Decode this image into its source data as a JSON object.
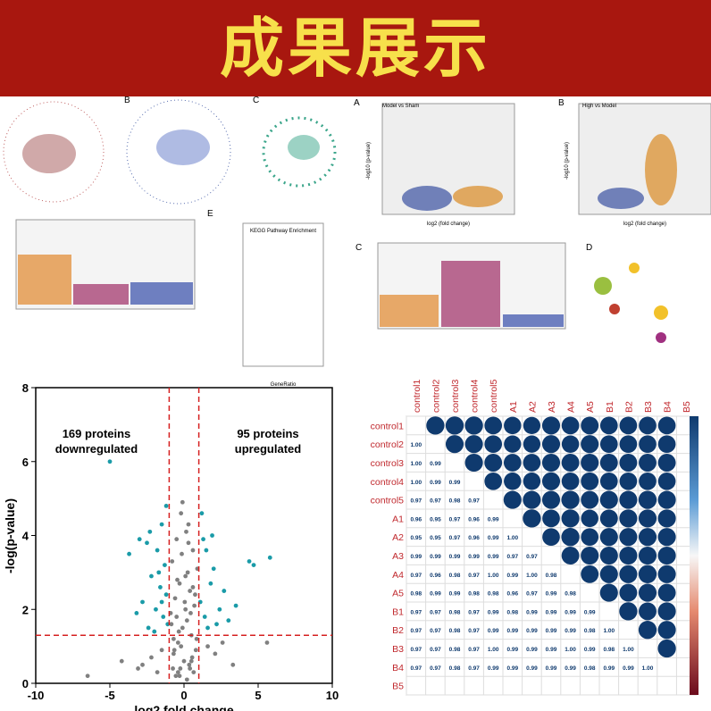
{
  "header": {
    "title": "成果展示"
  },
  "panels": {
    "labels": [
      "B",
      "C",
      "A",
      "B",
      "E",
      "C",
      "D"
    ],
    "texts": [
      "Model vs Sham",
      "High vs Model",
      "KEGG Pathway Enrichment",
      "GeneRatio",
      "log2 (fold change)",
      "log2 (fold change)",
      "-log10 (p-value)",
      "-log10 (p-value)"
    ]
  },
  "chart_data": [
    {
      "type": "scatter",
      "x_label": "log2 fold change",
      "y_label": "-log(p-value)",
      "annotations": [
        "169 proteins downregulated",
        "95 proteins upregulated"
      ],
      "xlim": [
        -10,
        10
      ],
      "xticks": [
        -10,
        -5,
        0,
        5,
        10
      ],
      "ylim": [
        0,
        8
      ],
      "yticks": [
        0,
        2,
        4,
        6,
        8
      ],
      "thresholds_x": [
        -1,
        1
      ],
      "threshold_y": 1.3,
      "threshold_color": "#d62020",
      "series": [
        {
          "color": "#808080",
          "x": [
            -0.2,
            0.3,
            -0.5,
            0.6,
            -0.8,
            0.9,
            0.1,
            -0.3,
            0.4,
            -0.6,
            0.7,
            -0.9,
            0.2,
            -0.1,
            0.5,
            -0.4,
            0.8,
            -0.7,
            0.0,
            0.35,
            -0.25,
            0.65,
            -0.55,
            0.15,
            -0.85,
            0.75,
            -0.45,
            0.45,
            -0.15,
            0.25,
            -0.65,
            0.55,
            -0.35,
            0.05,
            -0.75,
            0.85,
            -1.5,
            1.6,
            -2.2,
            2.1,
            -3.1,
            -4.2,
            3.3,
            2.6,
            -1.8,
            5.6,
            -0.3,
            0.2,
            -0.5,
            0.4,
            -0.1,
            0.6,
            -0.7,
            0.3,
            0.1,
            -0.2,
            0.5,
            -0.4,
            -6.5,
            -2.8
          ],
          "values": [
            4.6,
            4.3,
            3.9,
            3.6,
            3.3,
            3.1,
            2.9,
            2.7,
            2.5,
            2.3,
            2.1,
            1.9,
            1.7,
            1.5,
            1.3,
            1.1,
            0.9,
            0.8,
            0.6,
            0.5,
            0.4,
            0.3,
            0.2,
            4.1,
            1.6,
            2.4,
            2.8,
            1.9,
            3.5,
            3.0,
            0.9,
            0.7,
            1.4,
            2.2,
            0.4,
            1.2,
            0.9,
            1.0,
            0.7,
            0.8,
            0.4,
            0.6,
            0.5,
            1.1,
            0.3,
            1.1,
            0.2,
            0.1,
            1.8,
            0.4,
            4.9,
            2.6,
            1.2,
            3.8,
            2.0,
            1.0,
            0.6,
            0.3,
            0.2,
            0.5
          ]
        },
        {
          "color": "#1a9ba8",
          "x": [
            -5,
            -3.7,
            -2.3,
            -2.5,
            -1.8,
            -1.5,
            -1.3,
            -2.2,
            -1.6,
            -1.2,
            -2.8,
            -1.9,
            -1.4,
            -3.2,
            -1.1,
            -2.4,
            -1.7,
            -1.2,
            -2,
            -3,
            -1.5,
            1.2,
            1.5,
            2.0,
            4.4,
            4.7,
            5.8,
            1.8,
            1.1,
            2.4,
            1.4,
            3.0,
            1.6,
            2.7,
            1.3,
            2.2,
            3.5,
            1.9
          ],
          "values": [
            6,
            3.5,
            4.1,
            3.8,
            3.6,
            4.3,
            3.2,
            2.9,
            2.6,
            2.4,
            2.2,
            2.0,
            1.8,
            1.9,
            1.6,
            1.5,
            3.0,
            4.8,
            1.4,
            3.9,
            2.2,
            4.6,
            3.6,
            3.1,
            3.3,
            3.2,
            3.4,
            2.7,
            2.2,
            2.0,
            1.8,
            1.7,
            1.5,
            2.5,
            3.9,
            1.6,
            2.1,
            4.0
          ]
        }
      ]
    },
    {
      "type": "correlation",
      "labels": [
        "control1",
        "control2",
        "control3",
        "control4",
        "control5",
        "A1",
        "A2",
        "A3",
        "A4",
        "A5",
        "B1",
        "B2",
        "B3",
        "B4",
        "B5"
      ],
      "label_color": "#c0282d",
      "circle_color": "#0f3a6e",
      "values": [
        [],
        [
          1
        ],
        [
          1,
          0.99
        ],
        [
          1,
          0.99,
          0.99
        ],
        [
          0.97,
          0.97,
          0.98,
          0.97
        ],
        [
          0.96,
          0.95,
          0.97,
          0.96,
          0.99
        ],
        [
          0.95,
          0.95,
          0.97,
          0.96,
          0.99,
          1
        ],
        [
          0.99,
          0.99,
          0.99,
          0.99,
          0.99,
          0.97,
          0.97
        ],
        [
          0.97,
          0.96,
          0.98,
          0.97,
          1,
          0.99,
          1,
          0.98
        ],
        [
          0.98,
          0.99,
          0.99,
          0.98,
          0.98,
          0.96,
          0.97,
          0.99,
          0.98
        ],
        [
          0.97,
          0.97,
          0.98,
          0.97,
          0.99,
          0.98,
          0.99,
          0.99,
          0.99,
          0.99
        ],
        [
          0.97,
          0.97,
          0.98,
          0.97,
          0.99,
          0.99,
          0.99,
          0.99,
          0.99,
          0.98,
          1
        ],
        [
          0.97,
          0.97,
          0.98,
          0.97,
          1,
          0.99,
          0.99,
          0.99,
          1,
          0.99,
          0.98,
          1
        ],
        [
          0.97,
          0.97,
          0.98,
          0.97,
          0.99,
          0.99,
          0.99,
          0.99,
          0.99,
          0.98,
          0.99,
          0.99,
          1
        ],
        []
      ],
      "value_labels": [
        [],
        [
          "1.00"
        ],
        [
          "1.00",
          "0.99"
        ],
        [
          "1.00",
          "0.99",
          "0.99"
        ],
        [
          "0.97",
          "0.97",
          "0.98",
          "0.97"
        ],
        [
          "0.96",
          "0.95",
          "0.97",
          "0.96",
          "0.99"
        ],
        [
          "0.95",
          "0.95",
          "0.97",
          "0.96",
          "0.99",
          "1.00"
        ],
        [
          "0.99",
          "0.99",
          "0.99",
          "0.99",
          "0.99",
          "0.97",
          "0.97"
        ],
        [
          "0.97",
          "0.96",
          "0.98",
          "0.97",
          "1.00",
          "0.99",
          "1.00",
          "0.98"
        ],
        [
          "0.98",
          "0.99",
          "0.99",
          "0.98",
          "0.98",
          "0.96",
          "0.97",
          "0.99",
          "0.98"
        ],
        [
          "0.97",
          "0.97",
          "0.98",
          "0.97",
          "0.99",
          "0.98",
          "0.99",
          "0.99",
          "0.99",
          "0.99"
        ],
        [
          "0.97",
          "0.97",
          "0.98",
          "0.97",
          "0.99",
          "0.99",
          "0.99",
          "0.99",
          "0.99",
          "0.98",
          "1.00"
        ],
        [
          "0.97",
          "0.97",
          "0.98",
          "0.97",
          "1.00",
          "0.99",
          "0.99",
          "0.99",
          "1.00",
          "0.99",
          "0.98",
          "1.00"
        ],
        [
          "0.97",
          "0.97",
          "0.98",
          "0.97",
          "0.99",
          "0.99",
          "0.99",
          "0.99",
          "0.99",
          "0.98",
          "0.99",
          "0.99",
          "1.00"
        ],
        []
      ]
    }
  ]
}
